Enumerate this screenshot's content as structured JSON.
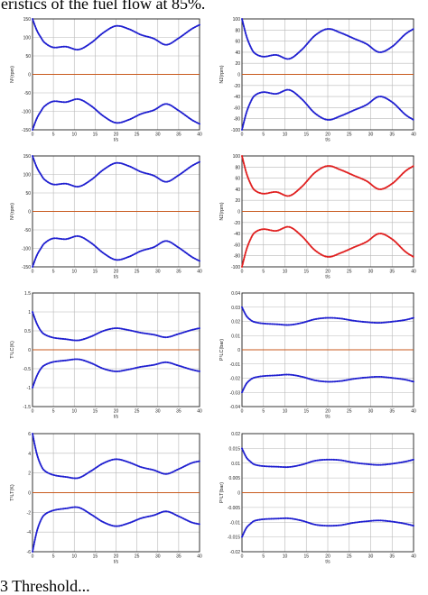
{
  "page": {
    "caption_top": "eristics of the fuel flow at 85%.",
    "caption_bottom": "3 Threshold..."
  },
  "colors": {
    "blue": "#1f1fd0",
    "red": "#e01f1f",
    "zero": "#c85a1e",
    "grid": "#b8b8b8",
    "axis": "#222222"
  },
  "chart_data": [
    {
      "type": "line",
      "ylabel": "N¹(rpm)",
      "xlabel": "t/s",
      "xlim": [
        0,
        40
      ],
      "ylim": [
        -150,
        150
      ],
      "yticks": [
        -150,
        -100,
        -50,
        0,
        50,
        100,
        150
      ],
      "xticks": [
        0,
        5,
        10,
        15,
        20,
        25,
        30,
        35,
        40
      ],
      "line_color": "blue",
      "x": [
        0,
        1,
        2,
        3,
        5,
        8,
        11,
        14,
        17,
        20,
        23,
        26,
        29,
        32,
        35,
        38,
        40
      ],
      "series": [
        {
          "values": [
            150,
            120,
            100,
            85,
            73,
            75,
            67,
            85,
            113,
            131,
            123,
            107,
            97,
            80,
            98,
            122,
            134
          ]
        },
        {
          "values": [
            -150,
            -120,
            -100,
            -85,
            -73,
            -75,
            -67,
            -85,
            -113,
            -131,
            -123,
            -107,
            -97,
            -80,
            -98,
            -122,
            -134
          ]
        }
      ],
      "zero_line": true
    },
    {
      "type": "line",
      "ylabel": "N2(rpm)",
      "xlabel": "t/s",
      "xlim": [
        0,
        40
      ],
      "ylim": [
        -100,
        100
      ],
      "yticks": [
        -100,
        -80,
        -60,
        -40,
        -20,
        0,
        20,
        40,
        60,
        80,
        100
      ],
      "xticks": [
        0,
        5,
        10,
        15,
        20,
        25,
        30,
        35,
        40
      ],
      "line_color": "blue",
      "x": [
        0,
        1,
        2,
        3,
        5,
        8,
        11,
        14,
        17,
        20,
        23,
        26,
        29,
        32,
        35,
        38,
        40
      ],
      "series": [
        {
          "values": [
            100,
            70,
            50,
            38,
            32,
            35,
            28,
            45,
            70,
            82,
            75,
            65,
            55,
            40,
            50,
            72,
            82
          ]
        },
        {
          "values": [
            -100,
            -70,
            -50,
            -38,
            -32,
            -35,
            -28,
            -45,
            -70,
            -82,
            -75,
            -65,
            -55,
            -40,
            -50,
            -72,
            -82
          ]
        }
      ],
      "zero_line": true
    },
    {
      "type": "line",
      "ylabel": "N¹(rpm)",
      "xlabel": "t/s",
      "xlim": [
        0,
        40
      ],
      "ylim": [
        -150,
        150
      ],
      "yticks": [
        -150,
        -100,
        -50,
        0,
        50,
        100,
        150
      ],
      "xticks": [
        0,
        5,
        10,
        15,
        20,
        25,
        30,
        35,
        40
      ],
      "line_color": "blue",
      "x": [
        0,
        1,
        2,
        3,
        5,
        8,
        11,
        14,
        17,
        20,
        23,
        26,
        29,
        32,
        35,
        38,
        40
      ],
      "series": [
        {
          "values": [
            150,
            120,
            100,
            85,
            73,
            75,
            67,
            85,
            113,
            131,
            123,
            107,
            97,
            80,
            98,
            122,
            134
          ]
        },
        {
          "values": [
            -150,
            -120,
            -100,
            -85,
            -73,
            -75,
            -67,
            -85,
            -113,
            -131,
            -123,
            -107,
            -97,
            -80,
            -98,
            -122,
            -134
          ]
        }
      ],
      "zero_line": true
    },
    {
      "type": "line",
      "ylabel": "N2(rpm)",
      "xlabel": "t/s",
      "xlim": [
        0,
        40
      ],
      "ylim": [
        -100,
        100
      ],
      "yticks": [
        -100,
        -80,
        -60,
        -40,
        -20,
        0,
        20,
        40,
        60,
        80,
        100
      ],
      "xticks": [
        0,
        5,
        10,
        15,
        20,
        25,
        30,
        35,
        40
      ],
      "line_color": "red",
      "x": [
        0,
        1,
        2,
        3,
        5,
        8,
        11,
        14,
        17,
        20,
        23,
        26,
        29,
        32,
        35,
        38,
        40
      ],
      "series": [
        {
          "values": [
            100,
            70,
            50,
            38,
            32,
            35,
            28,
            45,
            70,
            82,
            75,
            65,
            55,
            40,
            50,
            72,
            82
          ]
        },
        {
          "values": [
            -100,
            -70,
            -50,
            -38,
            -32,
            -35,
            -28,
            -45,
            -70,
            -82,
            -75,
            -65,
            -55,
            -40,
            -50,
            -72,
            -82
          ]
        }
      ],
      "zero_line": true
    },
    {
      "type": "line",
      "ylabel": "T¹LC(K)",
      "xlabel": "t/s",
      "xlim": [
        0,
        40
      ],
      "ylim": [
        -1.5,
        1.5
      ],
      "yticks": [
        -1.5,
        -1,
        -0.5,
        0,
        0.5,
        1,
        1.5
      ],
      "xticks": [
        0,
        5,
        10,
        15,
        20,
        25,
        30,
        35,
        40
      ],
      "line_color": "blue",
      "x": [
        0,
        1,
        2,
        3,
        5,
        8,
        11,
        14,
        17,
        20,
        23,
        26,
        29,
        32,
        35,
        38,
        40
      ],
      "series": [
        {
          "values": [
            1.0,
            0.7,
            0.5,
            0.4,
            0.32,
            0.28,
            0.25,
            0.35,
            0.5,
            0.57,
            0.52,
            0.45,
            0.4,
            0.33,
            0.42,
            0.52,
            0.57
          ]
        },
        {
          "values": [
            -1.0,
            -0.7,
            -0.5,
            -0.4,
            -0.32,
            -0.28,
            -0.25,
            -0.35,
            -0.5,
            -0.57,
            -0.52,
            -0.45,
            -0.4,
            -0.33,
            -0.42,
            -0.52,
            -0.57
          ]
        }
      ],
      "zero_line": true
    },
    {
      "type": "line",
      "ylabel": "P¹LC(bar)",
      "xlabel": "t/s",
      "xlim": [
        0,
        40
      ],
      "ylim": [
        -0.04,
        0.04
      ],
      "yticks": [
        -0.04,
        -0.03,
        -0.02,
        -0.01,
        0,
        0.01,
        0.02,
        0.03,
        0.04
      ],
      "xticks": [
        0,
        5,
        10,
        15,
        20,
        25,
        30,
        35,
        40
      ],
      "line_color": "blue",
      "x": [
        0,
        1,
        2,
        3,
        5,
        8,
        11,
        14,
        17,
        20,
        23,
        26,
        29,
        32,
        35,
        38,
        40
      ],
      "series": [
        {
          "values": [
            0.03,
            0.024,
            0.021,
            0.0195,
            0.0185,
            0.018,
            0.0175,
            0.019,
            0.0215,
            0.0225,
            0.022,
            0.0205,
            0.0195,
            0.019,
            0.0198,
            0.021,
            0.0225
          ]
        },
        {
          "values": [
            -0.03,
            -0.024,
            -0.021,
            -0.0195,
            -0.0185,
            -0.018,
            -0.0175,
            -0.019,
            -0.0215,
            -0.0225,
            -0.022,
            -0.0205,
            -0.0195,
            -0.019,
            -0.0198,
            -0.021,
            -0.0225
          ]
        }
      ],
      "zero_line": true
    },
    {
      "type": "line",
      "ylabel": "T¹LT(K)",
      "xlabel": "t/s",
      "xlim": [
        0,
        40
      ],
      "ylim": [
        -6,
        6
      ],
      "yticks": [
        -6,
        -4,
        -2,
        0,
        2,
        4,
        6
      ],
      "xticks": [
        0,
        5,
        10,
        15,
        20,
        25,
        30,
        35,
        40
      ],
      "line_color": "blue",
      "x": [
        0,
        1,
        2,
        3,
        5,
        8,
        11,
        14,
        17,
        20,
        23,
        26,
        29,
        32,
        35,
        38,
        40
      ],
      "series": [
        {
          "values": [
            6.0,
            4.0,
            2.8,
            2.2,
            1.8,
            1.6,
            1.5,
            2.2,
            3.0,
            3.4,
            3.1,
            2.6,
            2.3,
            1.9,
            2.4,
            3.0,
            3.2
          ]
        },
        {
          "values": [
            -6.0,
            -4.0,
            -2.8,
            -2.2,
            -1.8,
            -1.6,
            -1.5,
            -2.2,
            -3.0,
            -3.4,
            -3.1,
            -2.6,
            -2.3,
            -1.9,
            -2.4,
            -3.0,
            -3.2
          ]
        }
      ],
      "zero_line": true
    },
    {
      "type": "line",
      "ylabel": "P¹LT(bar)",
      "xlabel": "t/s",
      "xlim": [
        0,
        40
      ],
      "ylim": [
        -0.02,
        0.02
      ],
      "yticks": [
        -0.02,
        -0.015,
        -0.01,
        -0.005,
        0,
        0.005,
        0.01,
        0.015,
        0.02
      ],
      "xticks": [
        0,
        5,
        10,
        15,
        20,
        25,
        30,
        35,
        40
      ],
      "line_color": "blue",
      "x": [
        0,
        1,
        2,
        3,
        5,
        8,
        11,
        14,
        17,
        20,
        23,
        26,
        29,
        32,
        35,
        38,
        40
      ],
      "series": [
        {
          "values": [
            0.015,
            0.012,
            0.0105,
            0.0095,
            0.009,
            0.0088,
            0.0087,
            0.0095,
            0.0108,
            0.0112,
            0.011,
            0.0102,
            0.0097,
            0.0094,
            0.0098,
            0.0105,
            0.0112
          ]
        },
        {
          "values": [
            -0.015,
            -0.012,
            -0.0105,
            -0.0095,
            -0.009,
            -0.0088,
            -0.0087,
            -0.0095,
            -0.0108,
            -0.0112,
            -0.011,
            -0.0102,
            -0.0097,
            -0.0094,
            -0.0098,
            -0.0105,
            -0.0112
          ]
        }
      ],
      "zero_line": true
    }
  ]
}
